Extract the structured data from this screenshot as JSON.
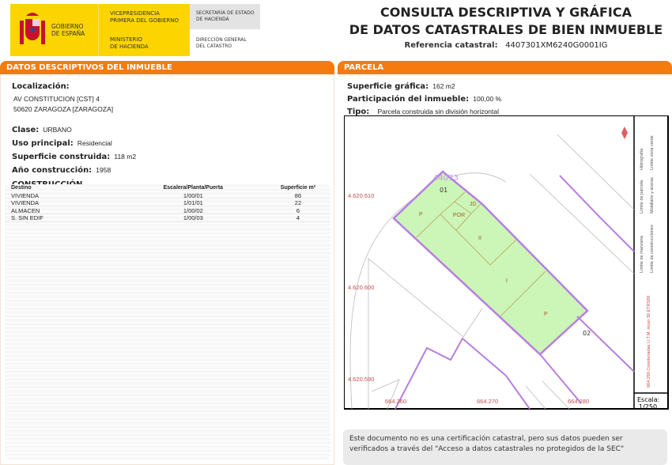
{
  "header": {
    "gov_line1": "GOBIERNO",
    "gov_line2": "DE ESPAÑA",
    "vp_line1": "VICEPRESIDENCIA",
    "vp_line2": "PRIMERA DEL GOBIERNO",
    "min_line1": "MINISTERIO",
    "min_line2": "DE HACIENDA",
    "sec_line1": "SECRETARÍA DE ESTADO",
    "sec_line2": "DE HACIENDA",
    "dg_line1": "DIRECCIÓN GENERAL",
    "dg_line2": "DEL CATASTRO"
  },
  "title": {
    "line1": "CONSULTA DESCRIPTIVA Y GRÁFICA",
    "line2": "DE DATOS CATASTRALES DE BIEN INMUEBLE",
    "ref_label": "Referencia catastral:",
    "ref_value": "4407301XM6240G0001IG"
  },
  "left": {
    "section": "DATOS DESCRIPTIVOS DEL INMUEBLE",
    "loc_label": "Localización:",
    "loc_line1": "AV CONSTITUCION [CST] 4",
    "loc_line2": "50620 ZARAGOZA [ZARAGOZA]",
    "clase_label": "Clase:",
    "clase": "URBANO",
    "uso_label": "Uso principal:",
    "uso": "Residencial",
    "sup_label": "Superficie construida:",
    "sup": "118 m2",
    "ano_label": "Año construcción:",
    "ano": "1958",
    "constr_title": "CONSTRUCCIÓN",
    "columns": [
      "Destino",
      "Escalera/Planta/Puerta",
      "Superficie m²"
    ],
    "rows": [
      [
        "VIVIENDA",
        "1/00/01",
        "86"
      ],
      [
        "VIVIENDA",
        "1/01/01",
        "22"
      ],
      [
        "ALMACEN",
        "1/00/02",
        "6"
      ],
      [
        "S. SIN EDIF",
        "1/00/03",
        "4"
      ]
    ]
  },
  "right": {
    "section": "PARCELA",
    "supg_label": "Superficie gráfica:",
    "supg": "162 m2",
    "part_label": "Participación del inmueble:",
    "part": "100,00 %",
    "tipo_label": "Tipo:",
    "tipo": "Parcela construida sin división horizontal"
  },
  "map": {
    "block_id": "44073",
    "parcel_01": "01",
    "parcel_02": "02",
    "labels": [
      "P",
      "POR",
      "JD",
      "II",
      "I",
      "P"
    ],
    "y_ticks": [
      "4.620.610",
      "4.620.600",
      "4.620.590"
    ],
    "x_ticks": [
      "664.260",
      "664.270",
      "664.280"
    ],
    "legend": [
      "Límite de manzana",
      "Límite de parcela",
      "Hidrografía",
      "Límite de construcciones",
      "Mobiliario y aceras",
      "Límite zona verde"
    ],
    "coords_note": "664.290 Coordenadas U.T.M. Huso 30 ETRS89",
    "scale_label": "Escala:",
    "scale": "1/250",
    "colors": {
      "parcel_fill": "#ccf5b8",
      "block_line": "#b77ee0",
      "coord_text": "#c0504d"
    }
  },
  "note": "Este documento no es una certificación catastral, pero sus datos pueden ser verificados a través del \"Acceso a datos catastrales no protegidos de la SEC\""
}
